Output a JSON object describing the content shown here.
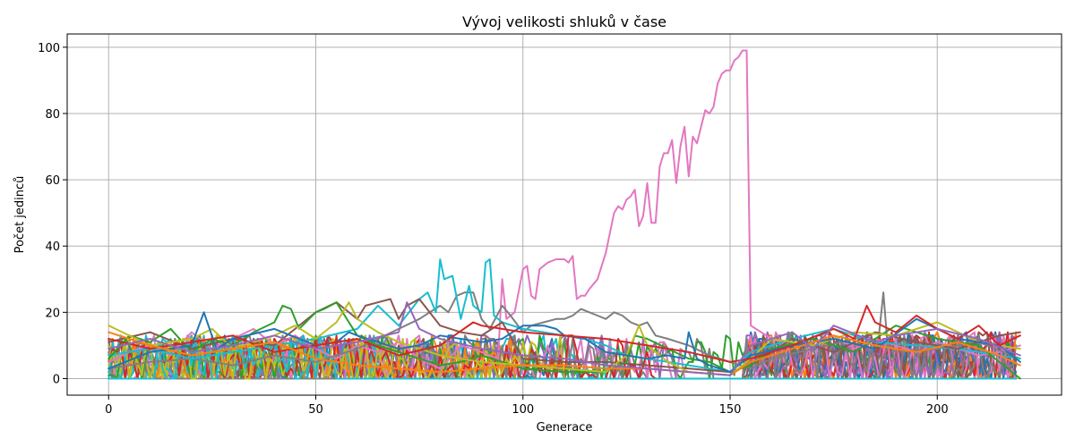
{
  "chart_data": {
    "type": "line",
    "title": "Vývoj velikosti shluků v čase",
    "xlabel": "Generace",
    "ylabel": "Počet jedinců",
    "xlim": [
      -10,
      230
    ],
    "ylim": [
      -5,
      104
    ],
    "xticks": [
      0,
      50,
      100,
      150,
      200
    ],
    "yticks": [
      0,
      20,
      40,
      60,
      80,
      100
    ],
    "grid": true,
    "palette": [
      "#1f77b4",
      "#ff7f0e",
      "#2ca02c",
      "#d62728",
      "#9467bd",
      "#8c564b",
      "#e377c2",
      "#7f7f7f",
      "#bcbd22",
      "#17becf"
    ],
    "highlight_series": [
      {
        "name": "",
        "color": "#e377c2",
        "x": [
          0,
          5,
          10,
          15,
          20,
          25,
          30,
          35,
          40,
          45,
          50,
          55,
          60,
          65,
          70,
          75,
          80,
          85,
          90,
          94,
          95,
          96,
          98,
          100,
          101,
          102,
          103,
          104,
          105,
          106,
          108,
          110,
          111,
          112,
          113,
          114,
          115,
          116,
          118,
          120,
          122,
          123,
          124,
          125,
          126,
          127,
          128,
          129,
          130,
          131,
          132,
          133,
          134,
          135,
          136,
          137,
          138,
          139,
          140,
          141,
          142,
          143,
          144,
          145,
          146,
          147,
          148,
          149,
          150,
          151,
          152,
          153,
          154,
          155,
          160,
          165,
          170,
          175,
          180,
          185,
          190,
          195,
          200,
          205,
          210,
          215,
          220
        ],
        "y": [
          5,
          8,
          10,
          7,
          14,
          9,
          12,
          15,
          10,
          13,
          9,
          6,
          10,
          8,
          11,
          6,
          3,
          10,
          8,
          6,
          30,
          18,
          20,
          33,
          34,
          25,
          24,
          33,
          34,
          35,
          36,
          36,
          35,
          37,
          24,
          25,
          25,
          27,
          30,
          38,
          50,
          52,
          51,
          54,
          55,
          57,
          46,
          49,
          59,
          47,
          47,
          64,
          68,
          68,
          72,
          59,
          70,
          76,
          61,
          73,
          71,
          76,
          81,
          80,
          82,
          89,
          92,
          93,
          93,
          96,
          97,
          99,
          99,
          16,
          12,
          10,
          11,
          13,
          9,
          12,
          10,
          8,
          11,
          9,
          7,
          8,
          10
        ]
      },
      {
        "name": "",
        "color": "#7f7f7f",
        "x": [
          0,
          10,
          20,
          30,
          40,
          50,
          60,
          65,
          70,
          75,
          80,
          82,
          84,
          86,
          88,
          90,
          92,
          95,
          97,
          100,
          102,
          105,
          108,
          110,
          112,
          114,
          116,
          118,
          120,
          122,
          124,
          126,
          128,
          130,
          132,
          135,
          140,
          145,
          150,
          155,
          160,
          170,
          180,
          186,
          187,
          188,
          190,
          200,
          210,
          220
        ],
        "y": [
          3,
          5,
          6,
          4,
          7,
          5,
          9,
          12,
          15,
          18,
          22,
          20,
          25,
          26,
          26,
          18,
          15,
          22,
          19,
          14,
          16,
          17,
          18,
          18,
          19,
          21,
          20,
          19,
          18,
          20,
          19,
          17,
          16,
          17,
          13,
          12,
          10,
          7,
          5,
          3,
          6,
          9,
          12,
          14,
          26,
          10,
          8,
          9,
          11,
          6
        ]
      },
      {
        "name": "",
        "color": "#17becf",
        "x": [
          0,
          10,
          20,
          30,
          40,
          50,
          60,
          65,
          70,
          75,
          77,
          79,
          80,
          81,
          83,
          85,
          87,
          88,
          90,
          91,
          92,
          93,
          95,
          100,
          105,
          110,
          115,
          120,
          125,
          130,
          135,
          140,
          145,
          150,
          155,
          165,
          175,
          185,
          195,
          205,
          220
        ],
        "y": [
          7,
          9,
          6,
          8,
          10,
          12,
          15,
          22,
          16,
          24,
          26,
          20,
          36,
          30,
          31,
          18,
          28,
          22,
          20,
          35,
          36,
          19,
          17,
          15,
          14,
          13,
          12,
          10,
          7,
          6,
          5,
          4,
          3,
          2,
          8,
          12,
          15,
          11,
          10,
          9,
          6
        ]
      },
      {
        "name": "",
        "color": "#8c564b",
        "x": [
          0,
          10,
          20,
          30,
          40,
          50,
          55,
          57,
          60,
          62,
          65,
          68,
          70,
          72,
          75,
          80,
          85,
          90,
          95,
          100,
          110,
          120,
          130,
          140,
          150,
          155,
          165,
          175,
          185,
          195,
          205,
          215,
          220
        ],
        "y": [
          11,
          14,
          9,
          12,
          10,
          20,
          23,
          21,
          18,
          22,
          23,
          24,
          18,
          22,
          24,
          16,
          14,
          13,
          17,
          6,
          5,
          5,
          4,
          3,
          2,
          4,
          12,
          8,
          14,
          11,
          9,
          13,
          14
        ]
      },
      {
        "name": "",
        "color": "#2ca02c",
        "x": [
          0,
          5,
          10,
          15,
          20,
          25,
          30,
          35,
          40,
          42,
          44,
          46,
          50,
          52,
          55,
          58,
          60,
          65,
          70,
          75,
          80,
          85,
          90,
          100,
          110,
          120,
          125,
          127,
          130,
          135,
          140,
          145,
          150,
          155,
          160,
          170,
          180,
          190,
          200,
          210,
          220
        ],
        "y": [
          6,
          13,
          11,
          15,
          8,
          12,
          10,
          14,
          17,
          22,
          21,
          15,
          20,
          21,
          23,
          17,
          13,
          10,
          8,
          6,
          4,
          5,
          7,
          3,
          2,
          2,
          5,
          13,
          12,
          9,
          6,
          5,
          2,
          4,
          9,
          12,
          8,
          16,
          12,
          10,
          0
        ]
      },
      {
        "name": "",
        "color": "#bcbd22",
        "x": [
          0,
          10,
          20,
          25,
          30,
          35,
          40,
          45,
          50,
          55,
          58,
          60,
          65,
          70,
          75,
          80,
          85,
          90,
          100,
          110,
          120,
          125,
          128,
          130,
          135,
          140,
          150,
          155,
          160,
          170,
          180,
          190,
          200,
          210,
          220
        ],
        "y": [
          16,
          10,
          12,
          15,
          9,
          11,
          13,
          16,
          12,
          17,
          23,
          18,
          14,
          11,
          9,
          7,
          6,
          5,
          4,
          3,
          2,
          7,
          16,
          10,
          5,
          2,
          1,
          6,
          12,
          10,
          14,
          13,
          17,
          11,
          9
        ]
      },
      {
        "name": "",
        "color": "#1f77b4",
        "x": [
          0,
          10,
          20,
          23,
          26,
          30,
          40,
          50,
          55,
          58,
          60,
          65,
          70,
          75,
          80,
          85,
          90,
          95,
          100,
          105,
          108,
          110,
          115,
          120,
          125,
          130,
          135,
          139,
          140,
          142,
          145,
          150,
          155,
          165,
          175,
          185,
          195,
          205,
          215,
          220
        ],
        "y": [
          3,
          8,
          10,
          20,
          9,
          12,
          15,
          10,
          11,
          14,
          13,
          11,
          9,
          10,
          13,
          12,
          11,
          12,
          16,
          16,
          15,
          13,
          12,
          8,
          7,
          6,
          7,
          6,
          14,
          6,
          4,
          2,
          7,
          10,
          12,
          9,
          18,
          12,
          10,
          5
        ]
      },
      {
        "name": "",
        "color": "#d62728",
        "x": [
          0,
          10,
          20,
          30,
          40,
          50,
          60,
          70,
          80,
          88,
          90,
          95,
          100,
          110,
          120,
          130,
          140,
          150,
          155,
          165,
          175,
          180,
          183,
          185,
          190,
          195,
          200,
          205,
          210,
          215,
          220
        ],
        "y": [
          12,
          9,
          11,
          13,
          8,
          10,
          12,
          7,
          10,
          17,
          16,
          15,
          14,
          13,
          12,
          10,
          8,
          5,
          6,
          10,
          15,
          12,
          22,
          17,
          14,
          19,
          15,
          12,
          16,
          10,
          13
        ]
      },
      {
        "name": "",
        "color": "#ff7f0e",
        "x": [
          0,
          10,
          20,
          30,
          40,
          50,
          60,
          70,
          80,
          90,
          100,
          110,
          120,
          130,
          140,
          150,
          155,
          165,
          175,
          185,
          195,
          205,
          215,
          220
        ],
        "y": [
          14,
          10,
          7,
          9,
          11,
          6,
          4,
          3,
          2,
          3,
          4,
          4,
          3,
          3,
          2,
          1,
          5,
          9,
          13,
          10,
          8,
          11,
          7,
          4
        ]
      },
      {
        "name": "",
        "color": "#9467bd",
        "x": [
          0,
          10,
          20,
          30,
          40,
          50,
          60,
          70,
          72,
          75,
          80,
          90,
          100,
          110,
          120,
          130,
          140,
          150,
          155,
          165,
          170,
          175,
          185,
          190,
          200,
          210,
          220
        ],
        "y": [
          9,
          12,
          8,
          10,
          13,
          9,
          11,
          14,
          23,
          15,
          12,
          9,
          7,
          6,
          4,
          3,
          2,
          1,
          10,
          14,
          9,
          16,
          11,
          13,
          15,
          12,
          7
        ]
      }
    ]
  }
}
